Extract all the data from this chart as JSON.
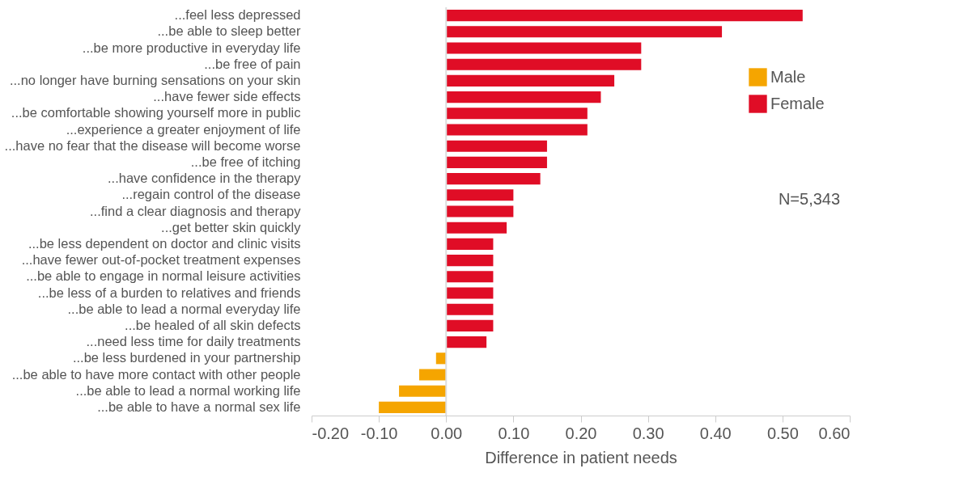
{
  "chart_data": {
    "type": "bar",
    "orientation": "horizontal",
    "xlabel": "Difference in patient needs",
    "categories": [
      "...feel less depressed",
      "...be able to sleep better",
      "...be more productive in everyday life",
      "...be free of pain",
      "...no longer have burning sensations on your skin",
      "...have fewer side effects",
      "...be comfortable showing yourself more in public",
      "...experience a greater enjoyment of life",
      "...have no fear that the disease will become worse",
      "...be free of itching",
      "...have confidence in the therapy",
      "...regain control of the disease",
      "...find a clear diagnosis and therapy",
      "...get better skin quickly",
      "...be less dependent on doctor and clinic visits",
      "...have fewer out-of-pocket treatment expenses",
      "...be able to engage in normal leisure activities",
      "...be less of a burden to relatives and friends",
      "...be able to lead a normal everyday life",
      "...be healed of all skin defects",
      "...need less time for daily treatments",
      "...be less burdened in your partnership",
      "...be able to have more contact with other people",
      "...be able to lead a normal working life",
      "...be able to have a normal sex life"
    ],
    "series": [
      {
        "name": "Male",
        "color": "#f5a500",
        "values": [
          null,
          null,
          null,
          null,
          null,
          null,
          null,
          null,
          null,
          null,
          null,
          null,
          null,
          null,
          null,
          null,
          null,
          null,
          null,
          null,
          null,
          -0.015,
          -0.04,
          -0.07,
          -0.1
        ]
      },
      {
        "name": "Female",
        "color": "#e00d26",
        "values": [
          0.53,
          0.41,
          0.29,
          0.29,
          0.25,
          0.23,
          0.21,
          0.21,
          0.15,
          0.15,
          0.14,
          0.1,
          0.1,
          0.09,
          0.07,
          0.07,
          0.07,
          0.07,
          0.07,
          0.07,
          0.06,
          null,
          null,
          null,
          null
        ]
      }
    ],
    "xlim": [
      -0.2,
      0.6
    ],
    "xticks": [
      {
        "value": -0.2,
        "label": "-0.20"
      },
      {
        "value": -0.1,
        "label": "-0.10"
      },
      {
        "value": 0,
        "label": "0.00"
      },
      {
        "value": 0.1,
        "label": "0.10"
      },
      {
        "value": 0.2,
        "label": "0.20"
      },
      {
        "value": 0.3,
        "label": "0.30"
      },
      {
        "value": 0.4,
        "label": "0.40"
      },
      {
        "value": 0.5,
        "label": "0.50"
      },
      {
        "value": 0.6,
        "label": "0.60"
      }
    ],
    "ref_lines": [
      {
        "axis": "x",
        "value": 0,
        "label": null,
        "color": "#dddddd"
      }
    ],
    "annotations": [
      "N=5,343"
    ],
    "legend": "top right",
    "grid": false
  }
}
